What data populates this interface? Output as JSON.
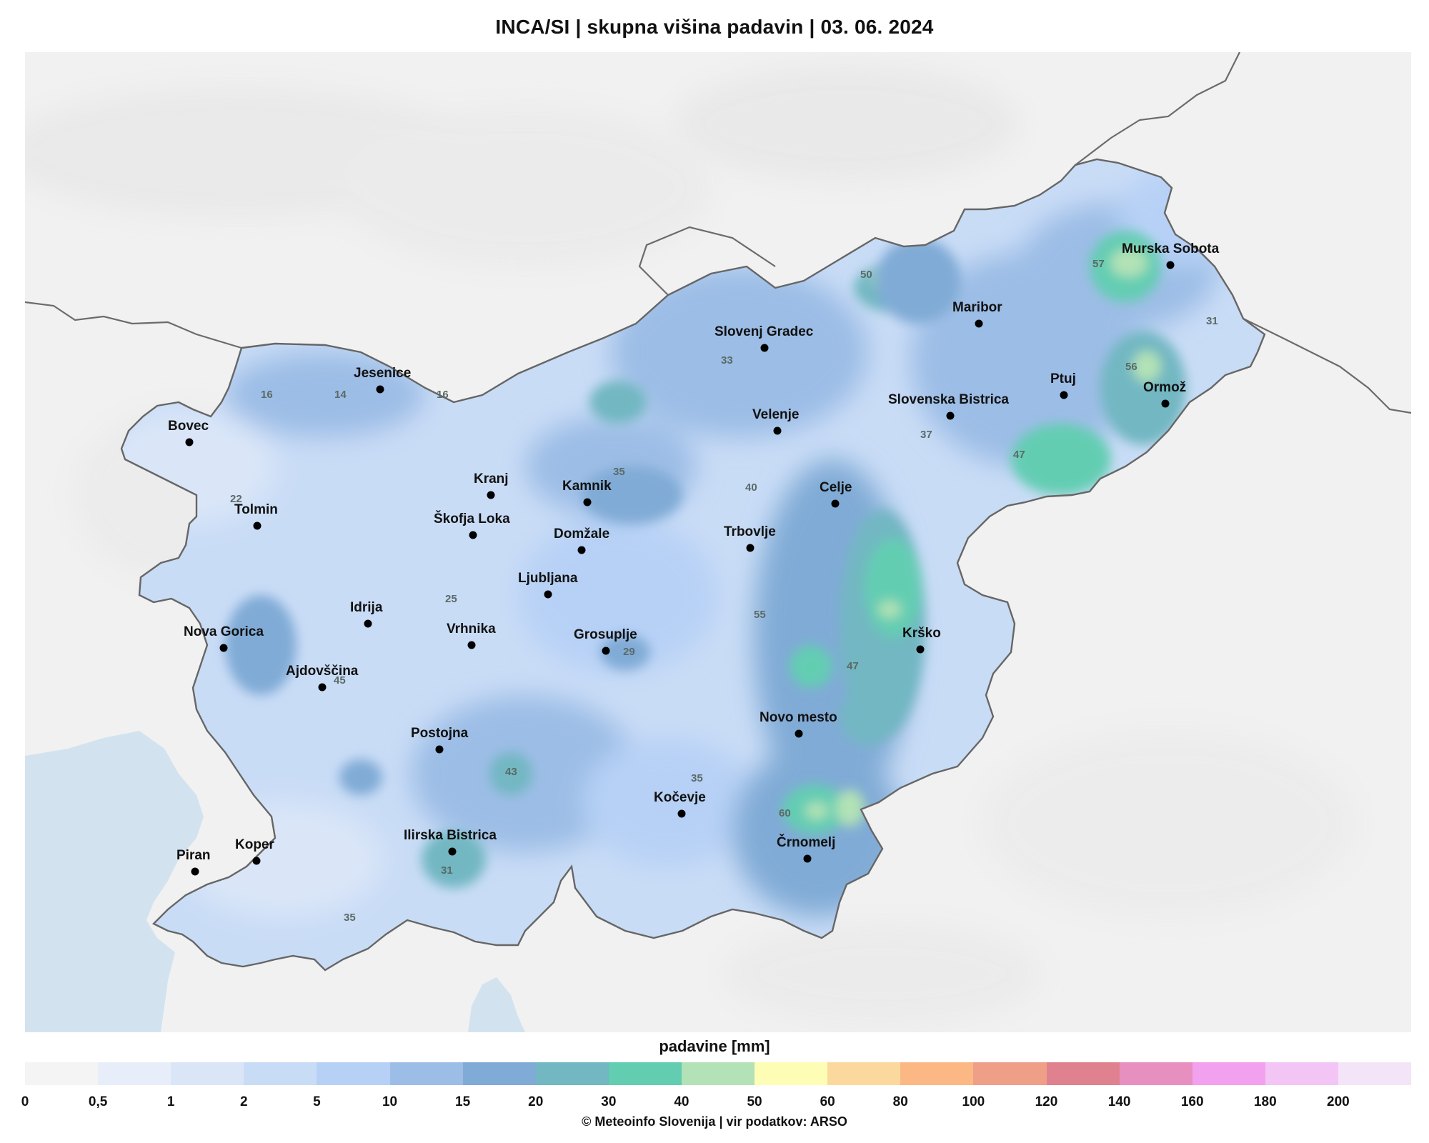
{
  "title": "INCA/SI  |  skupna višina padavin  |  03. 06. 2024",
  "legend": {
    "title": "padavine [mm]",
    "ticks": [
      "0",
      "0,5",
      "1",
      "2",
      "5",
      "10",
      "15",
      "20",
      "30",
      "40",
      "50",
      "60",
      "80",
      "100",
      "120",
      "140",
      "160",
      "180",
      "200"
    ],
    "colors": [
      "#f4f4f4",
      "#e8eef9",
      "#dae6f8",
      "#c9dcf6",
      "#b7d1f6",
      "#9cbde6",
      "#80abd6",
      "#72b7c2",
      "#63cdb2",
      "#b2e2b5",
      "#fefdb6",
      "#fbd99e",
      "#fbb884",
      "#ef9e87",
      "#e0818f",
      "#e78fbf",
      "#f2a1ee",
      "#f2c5f4",
      "#f3e4f8"
    ]
  },
  "cities": [
    {
      "name": "Jesenice"
    },
    {
      "name": "Bovec"
    },
    {
      "name": "Tolmin"
    },
    {
      "name": "Kranj"
    },
    {
      "name": "Kamnik"
    },
    {
      "name": "Škofja Loka"
    },
    {
      "name": "Domžale"
    },
    {
      "name": "Ljubljana"
    },
    {
      "name": "Idrija"
    },
    {
      "name": "Nova Gorica"
    },
    {
      "name": "Vrhnika"
    },
    {
      "name": "Grosuplje"
    },
    {
      "name": "Ajdovščina"
    },
    {
      "name": "Postojna"
    },
    {
      "name": "Kočevje"
    },
    {
      "name": "Ilirska Bistrica"
    },
    {
      "name": "Koper"
    },
    {
      "name": "Piran"
    },
    {
      "name": "Slovenj Gradec"
    },
    {
      "name": "Velenje"
    },
    {
      "name": "Celje"
    },
    {
      "name": "Trbovlje"
    },
    {
      "name": "Krško"
    },
    {
      "name": "Novo mesto"
    },
    {
      "name": "Črnomelj"
    },
    {
      "name": "Maribor"
    },
    {
      "name": "Slovenska Bistrica"
    },
    {
      "name": "Ptuj"
    },
    {
      "name": "Ormož"
    },
    {
      "name": "Murska Sobota"
    }
  ],
  "values": [
    "16",
    "14",
    "16",
    "22",
    "25",
    "45",
    "43",
    "31",
    "35",
    "29",
    "35",
    "33",
    "50",
    "35",
    "40",
    "55",
    "47",
    "60",
    "37",
    "47",
    "56",
    "57",
    "31"
  ],
  "credit": "© Meteoinfo Slovenija  |  vir podatkov: ARSO"
}
